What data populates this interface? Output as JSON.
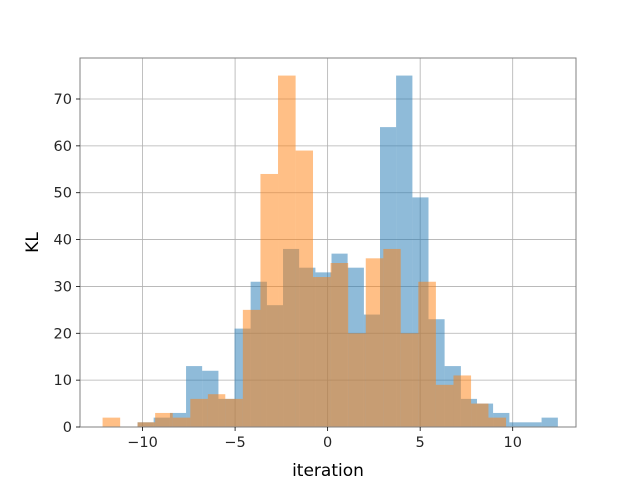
{
  "chart_data": {
    "type": "bar",
    "xlabel": "iteration",
    "ylabel": "KL",
    "xlim": [
      -13.38,
      13.42
    ],
    "ylim": [
      0,
      78.75
    ],
    "grid": true,
    "colors": {
      "series_0": "#1f77b4",
      "series_1": "#ff7f0e"
    },
    "alpha": 0.5,
    "x_ticks": [
      {
        "value": -10,
        "label": "−10"
      },
      {
        "value": -5,
        "label": "−5"
      },
      {
        "value": 0,
        "label": "0"
      },
      {
        "value": 5,
        "label": "5"
      },
      {
        "value": 10,
        "label": "10"
      }
    ],
    "y_ticks": [
      {
        "value": 0,
        "label": "0"
      },
      {
        "value": 10,
        "label": "10"
      },
      {
        "value": 20,
        "label": "20"
      },
      {
        "value": 30,
        "label": "30"
      },
      {
        "value": 40,
        "label": "40"
      },
      {
        "value": 50,
        "label": "50"
      },
      {
        "value": 60,
        "label": "60"
      },
      {
        "value": 70,
        "label": "70"
      }
    ],
    "series": [
      {
        "bin_edges": [
          -10.27,
          -9.4,
          -8.52,
          -7.65,
          -6.78,
          -5.9,
          -5.03,
          -4.16,
          -3.28,
          -2.41,
          -1.54,
          -0.66,
          0.21,
          1.08,
          1.96,
          2.83,
          3.7,
          4.58,
          5.45,
          6.32,
          7.2,
          8.07,
          8.94,
          9.82,
          10.69,
          11.56,
          12.44
        ],
        "counts": [
          1,
          2,
          3,
          13,
          12,
          6,
          21,
          31,
          26,
          38,
          34,
          33,
          37,
          34,
          24,
          64,
          75,
          49,
          23,
          13,
          6,
          5,
          3,
          1,
          1,
          2
        ]
      },
      {
        "bin_edges": [
          -12.16,
          -11.21,
          -10.27,
          -9.32,
          -8.37,
          -7.42,
          -6.47,
          -5.53,
          -4.58,
          -3.63,
          -2.68,
          -1.73,
          -0.79,
          0.16,
          1.11,
          2.06,
          3.01,
          3.95,
          4.9,
          5.85,
          6.8,
          7.75,
          8.69,
          9.64
        ],
        "counts": [
          2,
          0,
          1,
          3,
          2,
          6,
          7,
          6,
          25,
          54,
          75,
          59,
          32,
          35,
          20,
          36,
          38,
          20,
          31,
          9,
          11,
          5,
          2
        ]
      }
    ]
  }
}
